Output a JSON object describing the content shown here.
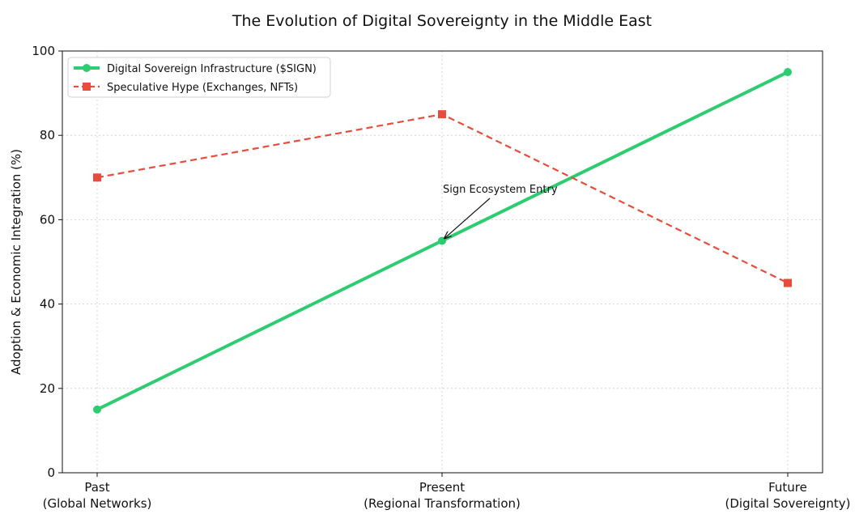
{
  "chart_data": {
    "type": "line",
    "title": "The Evolution of Digital Sovereignty in the Middle East",
    "xlabel": "",
    "ylabel": "Adoption & Economic Integration (%)",
    "ylim": [
      0,
      100
    ],
    "yticks": [
      0,
      20,
      40,
      60,
      80,
      100
    ],
    "grid": true,
    "legend_position": "top-left",
    "categories": [
      [
        "Past",
        "(Global Networks)"
      ],
      [
        "Present",
        "(Regional Transformation)"
      ],
      [
        "Future",
        "(Digital Sovereignty)"
      ]
    ],
    "series": [
      {
        "name": "Digital Sovereign Infrastructure ($SIGN)",
        "values": [
          15,
          55,
          95
        ],
        "color": "#2ecc71",
        "line_style": "solid",
        "marker": "circle"
      },
      {
        "name": "Speculative Hype (Exchanges, NFTs)",
        "values": [
          70,
          85,
          45
        ],
        "color": "#e74c3c",
        "line_style": "dashed",
        "marker": "square"
      }
    ],
    "annotations": [
      {
        "text": "Sign Ecosystem Entry",
        "x_index": 1,
        "y": 55,
        "series": 0
      }
    ]
  }
}
